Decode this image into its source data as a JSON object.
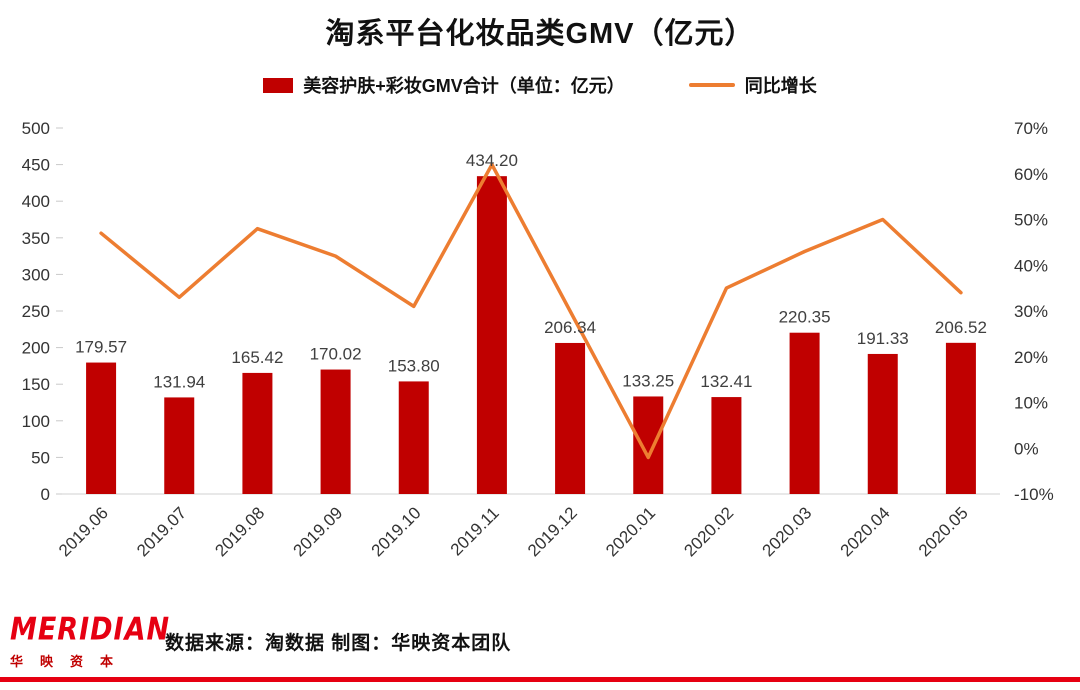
{
  "chart": {
    "title": "淘系平台化妆品类GMV（亿元）",
    "legend": [
      {
        "label": "美容护肤+彩妆GMV合计（单位：亿元）",
        "type": "bar",
        "color": "#c00000"
      },
      {
        "label": "同比增长",
        "type": "line",
        "color": "#ED7D31"
      }
    ]
  },
  "chart_data": {
    "type": "bar",
    "title": "淘系平台化妆品类GMV（亿元）",
    "categories": [
      "2019.06",
      "2019.07",
      "2019.08",
      "2019.09",
      "2019.10",
      "2019.11",
      "2019.12",
      "2020.01",
      "2020.02",
      "2020.03",
      "2020.04",
      "2020.05"
    ],
    "series": [
      {
        "name": "美容护肤+彩妆GMV合计（单位：亿元）",
        "type": "bar",
        "axis": "left",
        "color": "#c00000",
        "values": [
          179.57,
          131.94,
          165.42,
          170.02,
          153.8,
          434.2,
          206.34,
          133.25,
          132.41,
          220.35,
          191.33,
          206.52
        ]
      },
      {
        "name": "同比增长",
        "type": "line",
        "axis": "right",
        "color": "#ED7D31",
        "unit": "%",
        "values": [
          47,
          33,
          48,
          42,
          31,
          62,
          30,
          -2,
          35,
          43,
          50,
          34
        ]
      }
    ],
    "left_axis": {
      "min": 0,
      "max": 500,
      "step": 50
    },
    "right_axis": {
      "min": -10,
      "max": 70,
      "step": 10,
      "format": "percent"
    },
    "grid": false,
    "legend_position": "top",
    "bar_label_decimals": 2
  },
  "footer": {
    "logo_text": "MERIDIAN",
    "logo_sub": "华映资本",
    "source_text": "数据来源：淘数据  制图：华映资本团队"
  }
}
